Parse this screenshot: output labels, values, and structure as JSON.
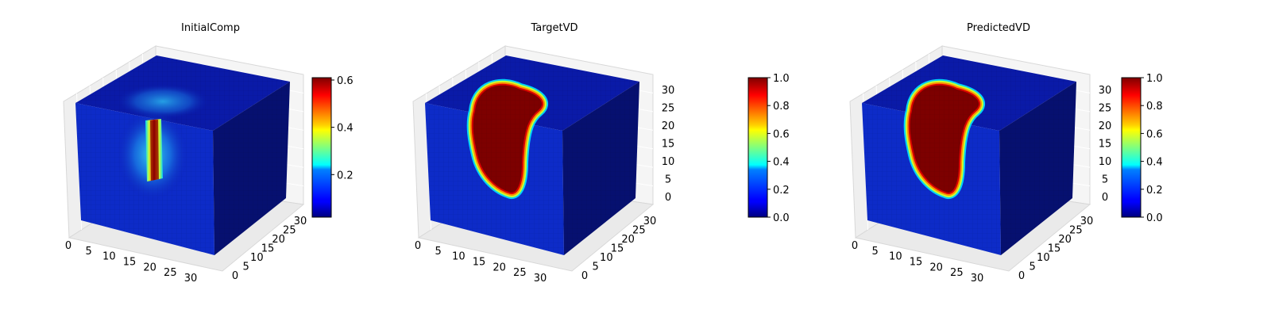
{
  "chart_data": [
    {
      "type": "heatmap",
      "title": "InitialComp",
      "colormap": "jet",
      "colorbar": {
        "min": 0.02,
        "max": 0.61,
        "ticks": [
          "0.2",
          "0.4",
          "0.6"
        ]
      },
      "axes": {
        "x": {
          "range": [
            0,
            32
          ],
          "ticks": [
            "0",
            "5",
            "10",
            "15",
            "20",
            "25",
            "30"
          ]
        },
        "y": {
          "range": [
            0,
            32
          ],
          "ticks": [
            "0",
            "5",
            "10",
            "15",
            "20",
            "25",
            "30"
          ]
        },
        "z": {
          "range": [
            0,
            32
          ],
          "ticks": []
        }
      },
      "grid": true
    },
    {
      "type": "heatmap",
      "title": "TargetVD",
      "colormap": "jet",
      "colorbar": {
        "min": 0.0,
        "max": 1.0,
        "ticks": [
          "0.0",
          "0.2",
          "0.4",
          "0.6",
          "0.8",
          "1.0"
        ]
      },
      "axes": {
        "x": {
          "range": [
            0,
            32
          ],
          "ticks": [
            "0",
            "5",
            "10",
            "15",
            "20",
            "25",
            "30"
          ]
        },
        "y": {
          "range": [
            0,
            32
          ],
          "ticks": [
            "0",
            "5",
            "10",
            "15",
            "20",
            "25",
            "30"
          ]
        },
        "z": {
          "range": [
            0,
            32
          ],
          "ticks": [
            "0",
            "5",
            "10",
            "15",
            "20",
            "25",
            "30"
          ]
        }
      },
      "grid": true
    },
    {
      "type": "heatmap",
      "title": "PredictedVD",
      "colormap": "jet",
      "colorbar": {
        "min": 0.0,
        "max": 1.0,
        "ticks": [
          "0.0",
          "0.2",
          "0.4",
          "0.6",
          "0.8",
          "1.0"
        ]
      },
      "axes": {
        "x": {
          "range": [
            0,
            32
          ],
          "ticks": [
            "0",
            "5",
            "10",
            "15",
            "20",
            "25",
            "30"
          ]
        },
        "y": {
          "range": [
            0,
            32
          ],
          "ticks": [
            "0",
            "5",
            "10",
            "15",
            "20",
            "25",
            "30"
          ]
        },
        "z": {
          "range": [
            0,
            32
          ],
          "ticks": [
            "0",
            "5",
            "10",
            "15",
            "20",
            "25",
            "30"
          ]
        }
      },
      "grid": true
    }
  ]
}
